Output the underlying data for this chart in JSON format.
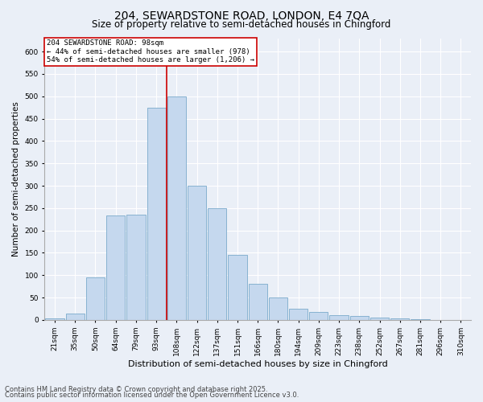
{
  "title1": "204, SEWARDSTONE ROAD, LONDON, E4 7QA",
  "title2": "Size of property relative to semi-detached houses in Chingford",
  "xlabel": "Distribution of semi-detached houses by size in Chingford",
  "ylabel": "Number of semi-detached properties",
  "categories": [
    "21sqm",
    "35sqm",
    "50sqm",
    "64sqm",
    "79sqm",
    "93sqm",
    "108sqm",
    "122sqm",
    "137sqm",
    "151sqm",
    "166sqm",
    "180sqm",
    "194sqm",
    "209sqm",
    "223sqm",
    "238sqm",
    "252sqm",
    "267sqm",
    "281sqm",
    "296sqm",
    "310sqm"
  ],
  "values": [
    3,
    15,
    95,
    233,
    235,
    475,
    500,
    300,
    250,
    145,
    80,
    50,
    25,
    18,
    10,
    8,
    5,
    3,
    1,
    0,
    0
  ],
  "bar_color": "#c5d8ee",
  "bar_edge_color": "#7aaacb",
  "vline_color": "#cc0000",
  "vline_x_index": 5.5,
  "annotation_text": "204 SEWARDSTONE ROAD: 98sqm\n← 44% of semi-detached houses are smaller (978)\n54% of semi-detached houses are larger (1,206) →",
  "annotation_box_color": "#ffffff",
  "annotation_box_edge": "#cc0000",
  "ylim": [
    0,
    630
  ],
  "yticks": [
    0,
    50,
    100,
    150,
    200,
    250,
    300,
    350,
    400,
    450,
    500,
    550,
    600
  ],
  "footer1": "Contains HM Land Registry data © Crown copyright and database right 2025.",
  "footer2": "Contains public sector information licensed under the Open Government Licence v3.0.",
  "bg_color": "#eaeff7",
  "plot_bg_color": "#eaeff7",
  "grid_color": "#ffffff",
  "title1_fontsize": 10,
  "title2_fontsize": 8.5,
  "xlabel_fontsize": 8,
  "ylabel_fontsize": 7.5,
  "tick_fontsize": 6.5,
  "annot_fontsize": 6.5,
  "footer_fontsize": 6
}
